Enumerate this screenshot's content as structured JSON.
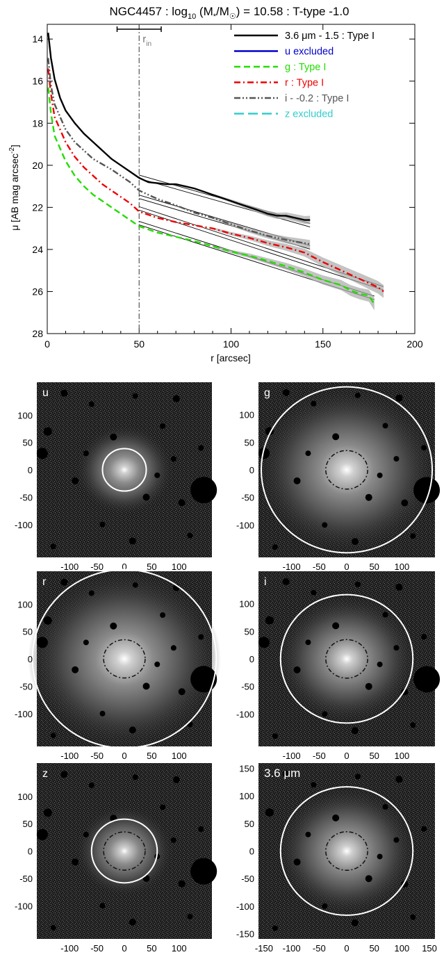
{
  "chart_data": [
    {
      "type": "line",
      "title": "NGC4457 : log10 (M*/M☉) = 10.58 : T-type -1.0",
      "title_parts": {
        "prefix": "NGC4457 : log",
        "subscript": "10",
        "mid": " (M",
        "star": "*",
        "slash": "/M",
        "sun": "☉",
        "suffix": ") = 10.58 : T-type -1.0"
      },
      "xlabel": "r [arcsec]",
      "ylabel": "μ [AB mag arcsec",
      "ylabel_sup": "-2",
      "ylabel_close": "]",
      "xlim": [
        0,
        200
      ],
      "ylim": [
        28,
        13.3
      ],
      "y_inverted": true,
      "xticks": [
        0,
        50,
        100,
        150,
        200
      ],
      "yticks": [
        14,
        16,
        18,
        20,
        22,
        24,
        26,
        28
      ],
      "r_in": {
        "x": 50,
        "label": "r",
        "sub": "in",
        "err_low": 38,
        "err_high": 62
      },
      "legend_position": "top-right",
      "series": [
        {
          "name": "3.6 μm - 1.5 : Type I",
          "color": "#000000",
          "dash": "solid",
          "x": [
            0.5,
            2,
            4,
            7,
            10,
            15,
            20,
            25,
            30,
            35,
            40,
            45,
            50,
            55,
            60,
            65,
            70,
            75,
            80,
            85,
            90,
            95,
            100,
            105,
            110,
            115,
            120,
            125,
            130,
            135,
            140,
            143
          ],
          "y": [
            13.7,
            14.9,
            15.9,
            16.8,
            17.4,
            18.0,
            18.5,
            18.9,
            19.3,
            19.7,
            20.0,
            20.3,
            20.6,
            20.8,
            20.85,
            20.9,
            20.9,
            21.0,
            21.1,
            21.25,
            21.4,
            21.55,
            21.7,
            21.85,
            22.0,
            22.15,
            22.3,
            22.4,
            22.4,
            22.5,
            22.6,
            22.6
          ]
        },
        {
          "name": "u excluded",
          "color": "#0000cc",
          "dash": "solid",
          "x": [],
          "y": []
        },
        {
          "name": "g : Type I",
          "color": "#22dd00",
          "dash": "dashed",
          "x": [
            0.5,
            2,
            4,
            7,
            10,
            15,
            20,
            25,
            30,
            35,
            40,
            45,
            50,
            60,
            70,
            80,
            90,
            100,
            110,
            120,
            130,
            140,
            150,
            160,
            165,
            170,
            175,
            178
          ],
          "y": [
            16.3,
            17.5,
            18.6,
            19.2,
            19.8,
            20.5,
            21.0,
            21.4,
            21.7,
            22.0,
            22.3,
            22.6,
            22.9,
            23.2,
            23.4,
            23.6,
            23.85,
            24.1,
            24.3,
            24.55,
            24.8,
            25.1,
            25.45,
            25.7,
            25.95,
            26.1,
            26.2,
            26.6
          ]
        },
        {
          "name": "r : Type I",
          "color": "#ee0000",
          "dash": "dashdot",
          "x": [
            0.5,
            2,
            4,
            7,
            10,
            15,
            20,
            25,
            30,
            35,
            40,
            45,
            50,
            60,
            70,
            80,
            90,
            100,
            110,
            120,
            130,
            140,
            150,
            160,
            170,
            175,
            180,
            183
          ],
          "y": [
            15.4,
            16.6,
            17.7,
            18.3,
            18.9,
            19.6,
            20.1,
            20.5,
            20.9,
            21.2,
            21.5,
            21.8,
            22.2,
            22.5,
            22.7,
            22.85,
            23.0,
            23.25,
            23.45,
            23.7,
            23.9,
            24.15,
            24.6,
            25.0,
            25.4,
            25.6,
            25.8,
            26.0
          ]
        },
        {
          "name": "i - -0.2 : Type I",
          "color": "#555555",
          "dash": "dashdotdot",
          "x": [
            0.5,
            2,
            4,
            7,
            10,
            15,
            20,
            25,
            30,
            35,
            40,
            45,
            50,
            60,
            70,
            80,
            90,
            100,
            110,
            120,
            130,
            140,
            143
          ],
          "y": [
            14.9,
            16.2,
            17.1,
            17.7,
            18.3,
            18.9,
            19.3,
            19.7,
            19.95,
            20.2,
            20.5,
            20.8,
            21.2,
            21.6,
            21.9,
            22.25,
            22.5,
            22.8,
            23.1,
            23.35,
            23.55,
            23.7,
            23.75
          ]
        },
        {
          "name": "z excluded",
          "color": "#33cccc",
          "dash": "longdash",
          "x": [],
          "y": []
        }
      ],
      "fits": [
        {
          "x": [
            50,
            143
          ],
          "y": [
            20.55,
            22.85
          ]
        },
        {
          "x": [
            50,
            143
          ],
          "y": [
            21.5,
            23.9
          ]
        },
        {
          "x": [
            50,
            183
          ],
          "y": [
            22.05,
            25.85
          ]
        },
        {
          "x": [
            50,
            178
          ],
          "y": [
            22.75,
            26.3
          ]
        }
      ]
    },
    {
      "type": "image",
      "panels": [
        {
          "label": "u",
          "ellipse_r": 40,
          "inner_r": 0,
          "xticks": [
            -100,
            -50,
            0,
            50,
            100
          ],
          "yticks": [
            100,
            50,
            0,
            -50,
            -100
          ],
          "lim": 160
        },
        {
          "label": "g",
          "ellipse_r": 155,
          "inner_r": 38,
          "xticks": [
            -100,
            -50,
            0,
            50,
            100
          ],
          "yticks": [
            100,
            50,
            0,
            -50,
            -100
          ],
          "lim": 160
        },
        {
          "label": "r",
          "ellipse_r": 168,
          "inner_r": 38,
          "xticks": [
            -100,
            -50,
            0,
            50,
            100
          ],
          "yticks": [
            100,
            50,
            0,
            -50,
            -100
          ],
          "lim": 160
        },
        {
          "label": "i",
          "ellipse_r": 120,
          "inner_r": 38,
          "xticks": [
            -100,
            -50,
            0,
            50,
            100
          ],
          "yticks": [
            100,
            50,
            0,
            -50,
            -100
          ],
          "lim": 160
        },
        {
          "label": "z",
          "ellipse_r": 60,
          "inner_r": 38,
          "xticks": [
            -100,
            -50,
            0,
            50,
            100
          ],
          "yticks": [
            100,
            50,
            0,
            -50,
            -100
          ],
          "lim": 160
        },
        {
          "label": "3.6 μm",
          "ellipse_r": 120,
          "inner_r": 38,
          "xticks": [
            -150,
            -100,
            -50,
            0,
            50,
            100,
            150
          ],
          "yticks": [
            150,
            100,
            50,
            0,
            -50,
            -100,
            -150
          ],
          "lim": 160
        }
      ]
    }
  ],
  "colors": {
    "fit": "#000000",
    "band": "#aaaaaa",
    "ellipse": "#ffffff",
    "panel_bg": "#1a1a1a"
  }
}
